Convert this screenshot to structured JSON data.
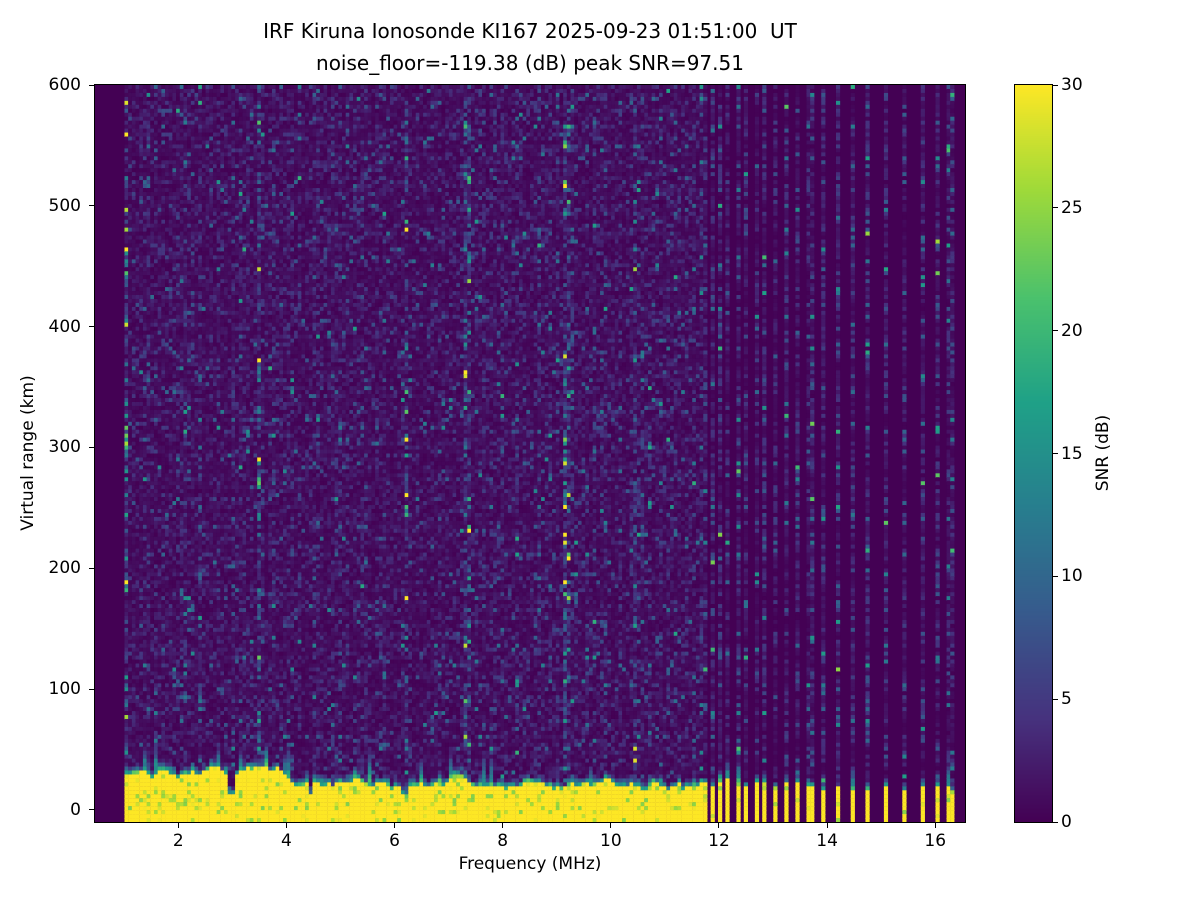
{
  "chart_data": {
    "type": "heatmap",
    "title": "IRF Kiruna Ionosonde KI167 2025-09-23 01:51:00  UT",
    "subtitle": "noise_floor=-119.38 (dB) peak SNR=97.51",
    "xlabel": "Frequency (MHz)",
    "ylabel": "Virtual range (km)",
    "colorbar_label": "SNR (dB)",
    "station": "IRF Kiruna Ionosonde KI167",
    "timestamp_ut": "2025-09-23 01:51:00",
    "noise_floor_db": -119.38,
    "peak_snr_db": 97.51,
    "xlim": [
      0.46,
      16.55
    ],
    "ylim": [
      -10,
      600
    ],
    "clim": [
      0,
      30
    ],
    "xticks": [
      2,
      4,
      6,
      8,
      10,
      12,
      14,
      16
    ],
    "yticks": [
      0,
      100,
      200,
      300,
      400,
      500,
      600
    ],
    "colorbar_ticks": [
      0,
      5,
      10,
      15,
      20,
      25,
      30
    ],
    "grid": false,
    "legend": "colorbar-right",
    "colormap": "viridis",
    "colormap_stops": [
      [
        0.0,
        "#440154"
      ],
      [
        0.14,
        "#46327e"
      ],
      [
        0.29,
        "#365c8d"
      ],
      [
        0.43,
        "#277f8e"
      ],
      [
        0.57,
        "#1fa187"
      ],
      [
        0.71,
        "#4ac16d"
      ],
      [
        0.86,
        "#a0da39"
      ],
      [
        1.0,
        "#fde725"
      ]
    ],
    "features": {
      "sweep_start_mhz": 1.0,
      "continuous_sweep_end_mhz": 11.62,
      "ground_clutter_band": {
        "description": "saturated yellow band of strong echoes near zero virtual range",
        "top_km_mean": 26,
        "top_km_min": 10,
        "top_km_max": 38,
        "snr_db": 30
      },
      "band_gap_freqs_mhz": [
        2.98,
        4.45,
        6.18
      ],
      "enhanced_noise_freqs_mhz": [
        1.05,
        3.5,
        6.22,
        7.35,
        9.2,
        10.45
      ],
      "sparse_stripe_freqs_mhz": [
        11.66,
        11.77,
        11.88,
        11.99,
        12.17,
        12.34,
        12.5,
        12.67,
        12.86,
        13.04,
        13.24,
        13.47,
        13.69,
        13.91,
        14.21,
        14.47,
        14.76,
        15.09,
        15.43,
        15.76,
        16.06,
        16.28
      ],
      "background_snr_db_range": [
        0,
        2
      ],
      "speckle_snr_db_range": [
        2,
        16
      ]
    },
    "render_seed": 167
  }
}
